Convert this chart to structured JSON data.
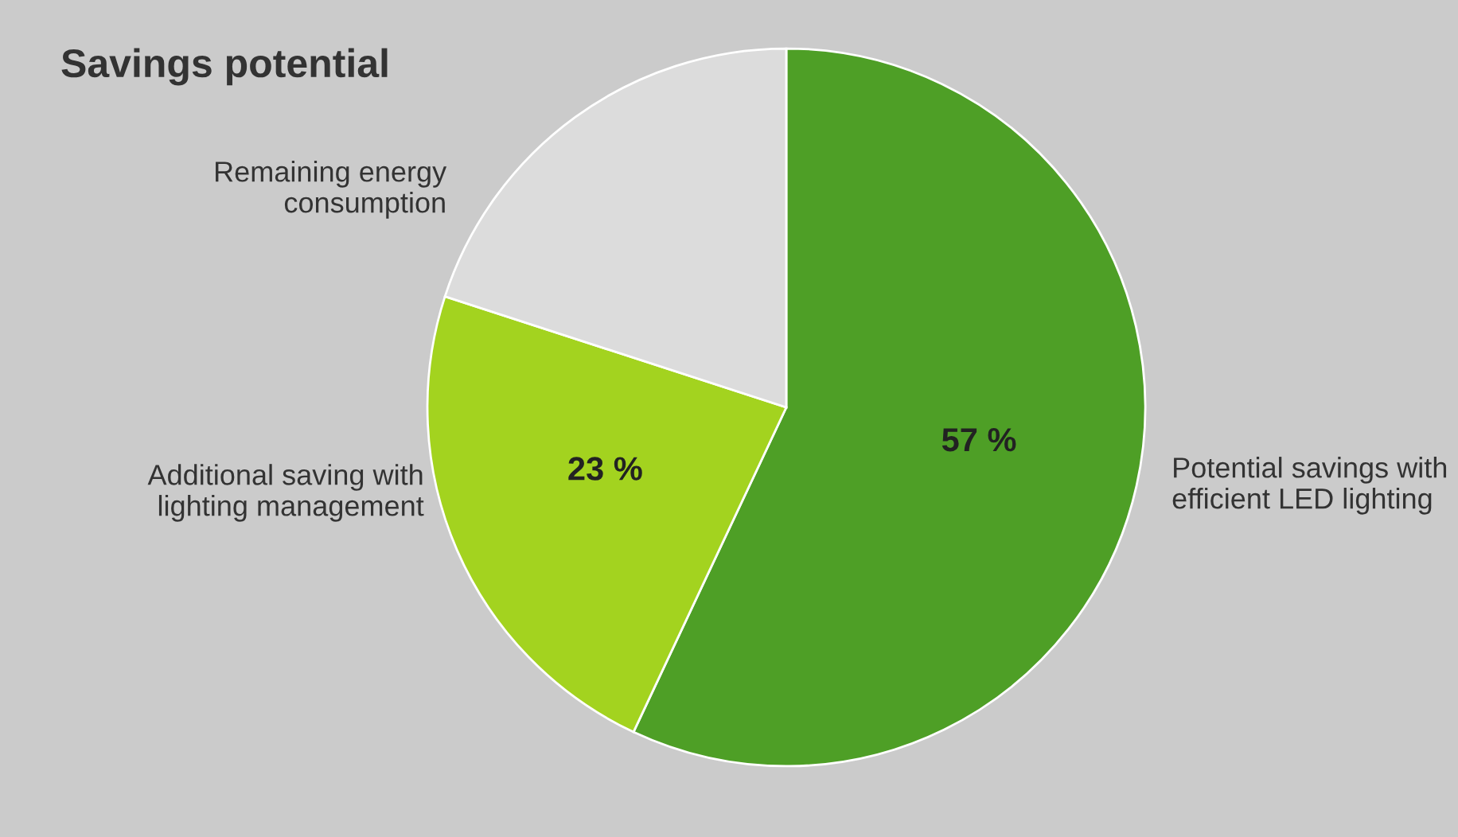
{
  "chart_data": {
    "type": "pie",
    "title": "Savings potential",
    "categories": [
      "Potential savings with\nefficient LED lighting",
      "Additional saving with\nlighting management",
      "Remaining energy\nconsumption"
    ],
    "values": [
      57,
      23,
      20
    ],
    "value_labels": [
      "57 %",
      "23 %",
      null
    ],
    "colors": [
      "#4e9f26",
      "#a3d31f",
      "#dcdcdc"
    ]
  }
}
